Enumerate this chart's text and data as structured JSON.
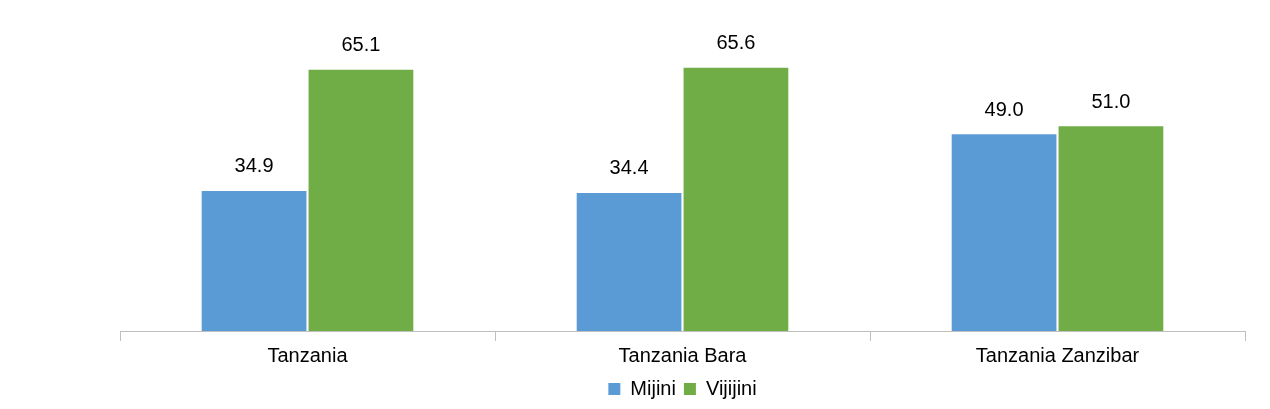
{
  "chart_data": {
    "type": "bar",
    "categories": [
      "Tanzania",
      "Tanzania Bara",
      "Tanzania Zanzibar"
    ],
    "series": [
      {
        "name": "Mijini",
        "color": "#5b9bd5",
        "values": [
          34.9,
          34.4,
          49.0
        ],
        "value_labels": [
          "34.9",
          "34.4",
          "49.0"
        ]
      },
      {
        "name": "Vijijini",
        "color": "#70ad47",
        "values": [
          65.1,
          65.6,
          51.0
        ],
        "value_labels": [
          "65.1",
          "65.6",
          "51.0"
        ]
      }
    ],
    "legend": "bottom"
  }
}
